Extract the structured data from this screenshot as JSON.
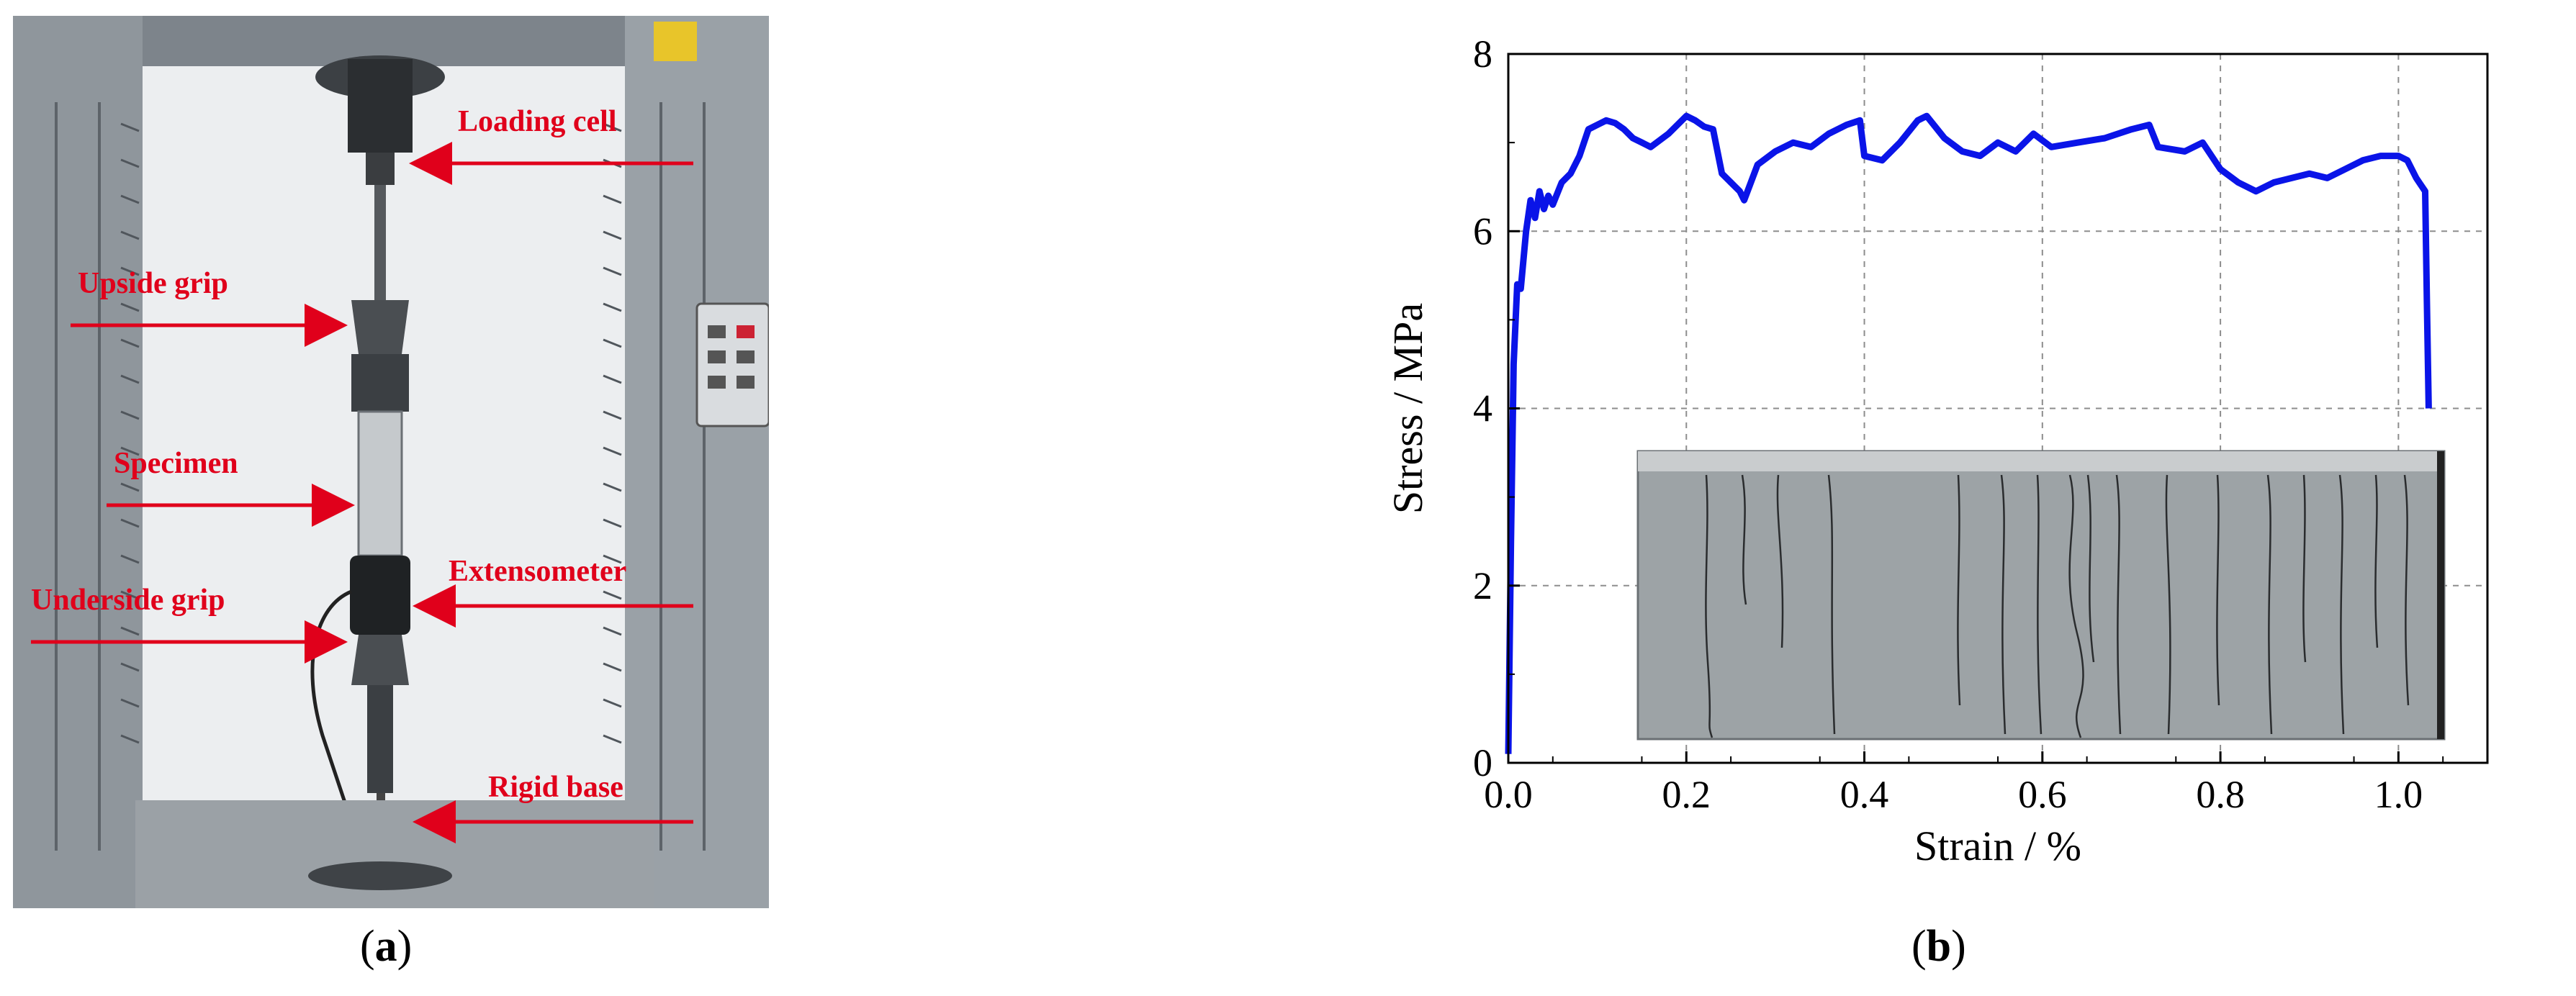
{
  "figure": {
    "panel_a": {
      "caption_letter": "a",
      "labels": {
        "loading_cell": "Loading cell",
        "upside_grip": "Upside grip",
        "specimen": "Specimen",
        "extensometer": "Extensometer",
        "underside_grip": "Underside grip",
        "rigid_base": "Rigid base"
      },
      "colors": {
        "label": "#e0001b",
        "frame": "#8a8f95",
        "background": "#eef0f2"
      }
    },
    "panel_b": {
      "caption_letter": "b"
    }
  },
  "chart_data": {
    "type": "line",
    "title": "",
    "xlabel": "Strain / %",
    "ylabel": "Stress / MPa",
    "xlim": [
      0.0,
      1.1
    ],
    "ylim": [
      0,
      8
    ],
    "x_ticks": [
      "0.0",
      "0.2",
      "0.4",
      "0.6",
      "0.8",
      "1.0"
    ],
    "y_ticks": [
      "0",
      "2",
      "4",
      "6",
      "8"
    ],
    "grid": true,
    "line_color": "#0a14e8",
    "series": [
      {
        "x": [
          0.0,
          0.003,
          0.006,
          0.01,
          0.014,
          0.02,
          0.025,
          0.03,
          0.035,
          0.04,
          0.045,
          0.05,
          0.06,
          0.07,
          0.08,
          0.09,
          0.1,
          0.11,
          0.12,
          0.13,
          0.14,
          0.15,
          0.16,
          0.18,
          0.2,
          0.21,
          0.22,
          0.23,
          0.24,
          0.25,
          0.26,
          0.265,
          0.28,
          0.3,
          0.32,
          0.34,
          0.36,
          0.38,
          0.395,
          0.4,
          0.42,
          0.44,
          0.46,
          0.47,
          0.49,
          0.51,
          0.53,
          0.55,
          0.57,
          0.59,
          0.61,
          0.64,
          0.67,
          0.7,
          0.72,
          0.73,
          0.76,
          0.78,
          0.8,
          0.82,
          0.84,
          0.86,
          0.88,
          0.9,
          0.92,
          0.94,
          0.96,
          0.98,
          1.0,
          1.01,
          1.02,
          1.03,
          1.032,
          1.034
        ],
        "y": [
          0.1,
          2.5,
          4.5,
          5.4,
          5.35,
          6.0,
          6.35,
          6.15,
          6.45,
          6.25,
          6.4,
          6.3,
          6.55,
          6.65,
          6.85,
          7.15,
          7.2,
          7.25,
          7.22,
          7.15,
          7.05,
          7.0,
          6.95,
          7.1,
          7.3,
          7.25,
          7.18,
          7.15,
          6.65,
          6.55,
          6.45,
          6.35,
          6.75,
          6.9,
          7.0,
          6.95,
          7.1,
          7.2,
          7.25,
          6.85,
          6.8,
          7.0,
          7.25,
          7.3,
          7.05,
          6.9,
          6.85,
          7.0,
          6.9,
          7.1,
          6.95,
          7.0,
          7.05,
          7.15,
          7.2,
          6.95,
          6.9,
          7.0,
          6.7,
          6.55,
          6.45,
          6.55,
          6.6,
          6.65,
          6.6,
          6.7,
          6.8,
          6.85,
          6.85,
          6.8,
          6.6,
          6.45,
          5.2,
          4.0
        ]
      }
    ]
  }
}
